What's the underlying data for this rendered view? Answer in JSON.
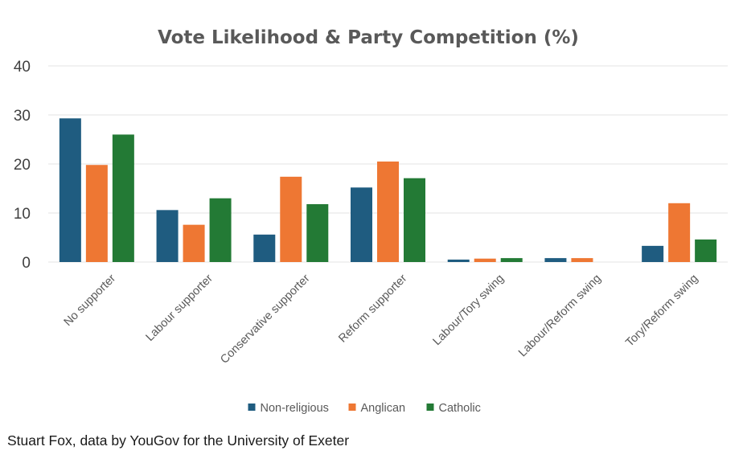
{
  "chart_data": {
    "type": "bar",
    "title": "Vote Likelihood & Party Competition (%)",
    "categories": [
      "No supporter",
      "Labour supporter",
      "Conservative supporter",
      "Reform supporter",
      "Labour/Tory swing",
      "Labour/Reform swing",
      "Tory/Reform swing"
    ],
    "series": [
      {
        "name": "Non-religious",
        "color": "#1f5c80",
        "values": [
          29.3,
          10.6,
          5.6,
          15.2,
          0.5,
          0.8,
          3.3
        ]
      },
      {
        "name": "Anglican",
        "color": "#ee7733",
        "values": [
          19.8,
          7.6,
          17.4,
          20.5,
          0.7,
          0.8,
          12.0
        ]
      },
      {
        "name": "Catholic",
        "color": "#237a35",
        "values": [
          26.0,
          13.0,
          11.8,
          17.1,
          0.8,
          0,
          4.6
        ]
      }
    ],
    "ylim": [
      0,
      40
    ],
    "yticks": [
      0,
      10,
      20,
      30,
      40
    ],
    "xlabel": "",
    "ylabel": "",
    "grid": true,
    "legend_position": "bottom"
  },
  "caption": "Stuart Fox, data by YouGov for the University of Exeter"
}
